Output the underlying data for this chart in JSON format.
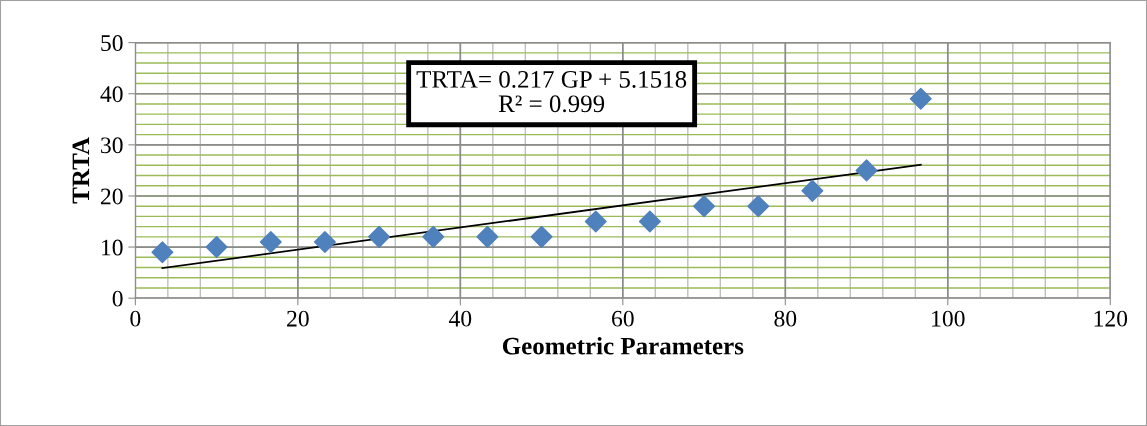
{
  "chart_data": {
    "type": "scatter",
    "xlabel": "Geometric Parameters",
    "ylabel": "TRTA",
    "xlim": [
      0,
      120
    ],
    "xticks": [
      0,
      20,
      40,
      60,
      80,
      100,
      120
    ],
    "ylim": [
      0,
      50
    ],
    "yticks": [
      0,
      10,
      20,
      30,
      40,
      50
    ],
    "grid": true,
    "legend": false,
    "marker": "diamond",
    "annotations": [
      "TRTA= 0.217 GP + 5.1518\nR² = 0.999"
    ],
    "series": [
      {
        "color": "#4f81bd",
        "x": [
          3.33,
          10,
          16.67,
          23.33,
          30,
          36.67,
          43.33,
          50,
          56.67,
          63.33,
          70,
          76.67,
          83.33,
          90,
          96.67
        ],
        "values": [
          9,
          10,
          11,
          11,
          12,
          12,
          12,
          12,
          15,
          15,
          18,
          18,
          21,
          25,
          39
        ]
      },
      {
        "type": "line",
        "color": "#000000",
        "marker": "none",
        "x": [
          3.33,
          96.67
        ],
        "values": [
          5.9,
          26.1
        ]
      }
    ]
  }
}
